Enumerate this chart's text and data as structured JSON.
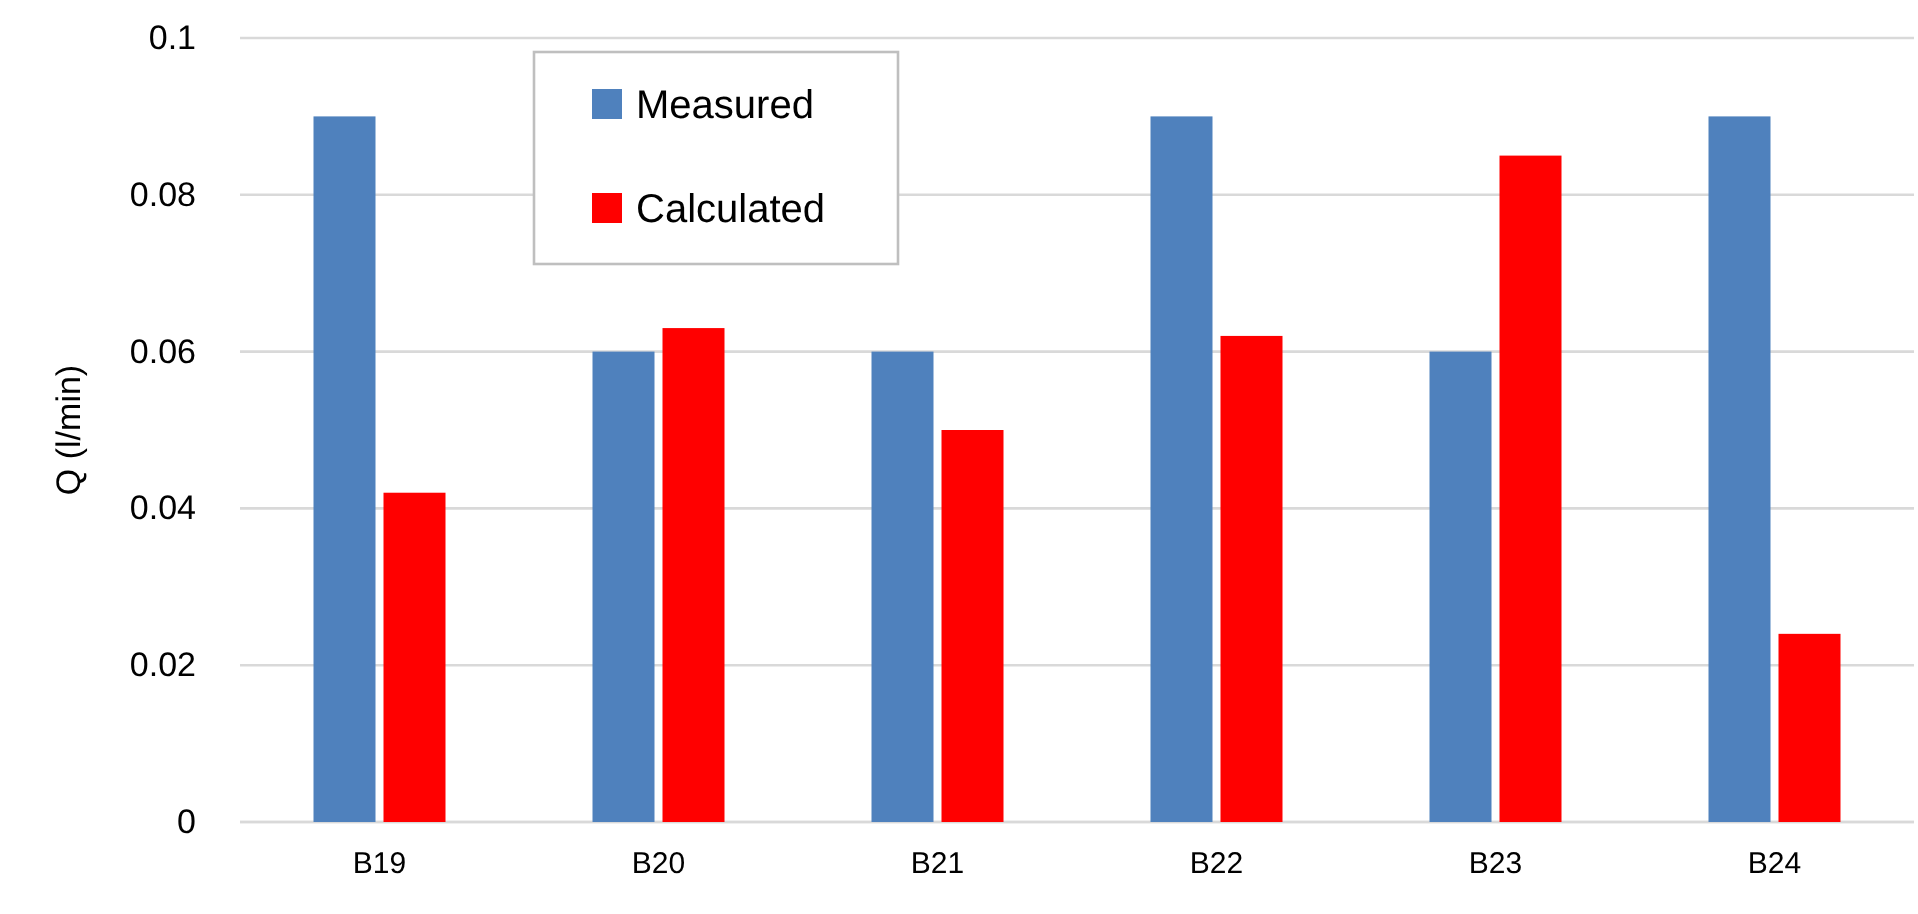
{
  "chart_data": {
    "type": "bar",
    "ylabel": "Q (l/min)",
    "categories": [
      "B19",
      "B20",
      "B21",
      "B22",
      "B23",
      "B24"
    ],
    "series": [
      {
        "name": "Measured",
        "color": "#4f81bd",
        "values": [
          0.09,
          0.06,
          0.06,
          0.09,
          0.06,
          0.09
        ]
      },
      {
        "name": "Calculated",
        "color": "#ff0000",
        "values": [
          0.042,
          0.063,
          0.05,
          0.062,
          0.085,
          0.024
        ]
      }
    ],
    "ylim": [
      0,
      0.1
    ],
    "yticks": [
      0,
      0.02,
      0.04,
      0.06,
      0.08,
      0.1
    ],
    "grid": "y",
    "legend": "top left"
  }
}
